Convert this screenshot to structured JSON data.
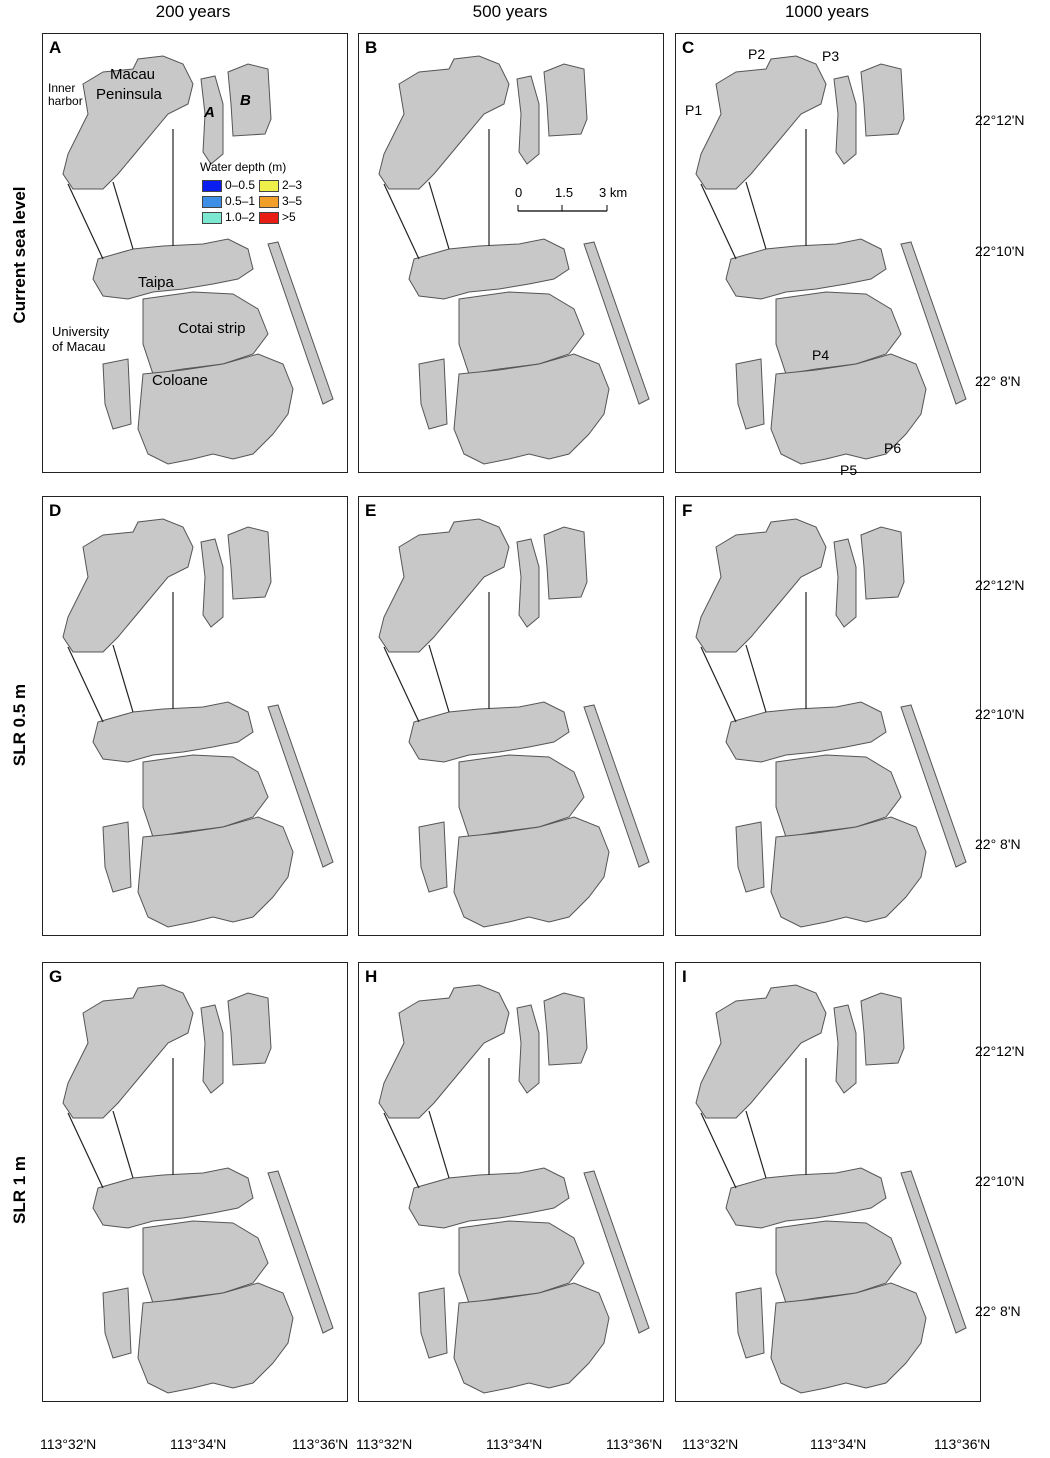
{
  "columns": [
    "200 years",
    "500 years",
    "1000 years"
  ],
  "rows": [
    "Current sea level",
    "SLR 0.5 m",
    "SLR 1 m"
  ],
  "panels": [
    "A",
    "B",
    "C",
    "D",
    "E",
    "F",
    "G",
    "H",
    "I"
  ],
  "lat_labels": [
    "22°12'N",
    "22°10'N",
    "22° 8'N"
  ],
  "lon_labels": [
    "113°32'N",
    "113°34'N",
    "113°36'N"
  ],
  "place_labels": {
    "macau": "Macau",
    "peninsula": "Peninsula",
    "inner_harbor_1": "Inner",
    "inner_harbor_2": "harbor",
    "taipa": "Taipa",
    "cotai": "Cotai strip",
    "coloane": "Coloane",
    "univ_1": "University",
    "univ_2": "of Macau",
    "zone_a": "A",
    "zone_b": "B"
  },
  "legend": {
    "title": "Water depth (m)",
    "items": [
      {
        "label": "0–0.5",
        "color": "#0a1ef0"
      },
      {
        "label": "2–3",
        "color": "#f0f04a"
      },
      {
        "label": "0.5–1",
        "color": "#3c8ee6"
      },
      {
        "label": "3–5",
        "color": "#f0a028"
      },
      {
        "label": "1.0–2",
        "color": "#7de8d2"
      },
      {
        "label": ">5",
        "color": "#e81e14"
      }
    ]
  },
  "scale_bar": {
    "t0": "0",
    "t1": "1.5",
    "t2": "3 km"
  },
  "points": [
    "P1",
    "P2",
    "P3",
    "P4",
    "P5",
    "P6"
  ],
  "colors": {
    "land": "#c8c8c8",
    "land_edge": "#555555",
    "point": "#e0208c"
  }
}
